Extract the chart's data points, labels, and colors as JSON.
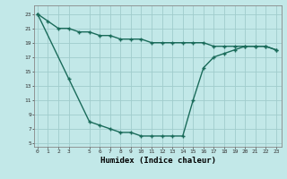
{
  "xlabel": "Humidex (Indice chaleur)",
  "background_color": "#c2e8e8",
  "grid_color": "#a0cccc",
  "line_color": "#1a6b5a",
  "upper_x": [
    0,
    1,
    2,
    3,
    4,
    5,
    6,
    7,
    8,
    9,
    10,
    11,
    12,
    13,
    14,
    15,
    16,
    17,
    18,
    19,
    20,
    21,
    22,
    23
  ],
  "upper_y": [
    23,
    22,
    21,
    21,
    20.5,
    20.5,
    20,
    20,
    19.5,
    19.5,
    19.5,
    19,
    19,
    19,
    19,
    19,
    19,
    18.5,
    18.5,
    18.5,
    18.5,
    18.5,
    18.5,
    18
  ],
  "lower_x": [
    0,
    3,
    5,
    6,
    7,
    8,
    9,
    10,
    11,
    12,
    13,
    14,
    15,
    16,
    17,
    18,
    19,
    20,
    21,
    22,
    23
  ],
  "lower_y": [
    23,
    14,
    8,
    7.5,
    7,
    6.5,
    6.5,
    6,
    6,
    6,
    6,
    6,
    11,
    15.5,
    17,
    17.5,
    18,
    18.5,
    18.5,
    18.5,
    18
  ],
  "xtick_labels": [
    "0",
    "1",
    "2",
    "3",
    "5",
    "6",
    "7",
    "8",
    "9",
    "10",
    "11",
    "12",
    "13",
    "14",
    "15",
    "16",
    "17",
    "18",
    "19",
    "20",
    "21",
    "22",
    "23"
  ],
  "xtick_positions": [
    0,
    1,
    2,
    3,
    5,
    6,
    7,
    8,
    9,
    10,
    11,
    12,
    13,
    14,
    15,
    16,
    17,
    18,
    19,
    20,
    21,
    22,
    23
  ],
  "ytick_positions": [
    5,
    7,
    9,
    11,
    13,
    15,
    17,
    19,
    21,
    23
  ],
  "ytick_labels": [
    "5",
    "7",
    "9",
    "11",
    "13",
    "15",
    "17",
    "19",
    "21",
    "23"
  ],
  "xlim": [
    -0.3,
    23.5
  ],
  "ylim": [
    4.5,
    24.2
  ]
}
